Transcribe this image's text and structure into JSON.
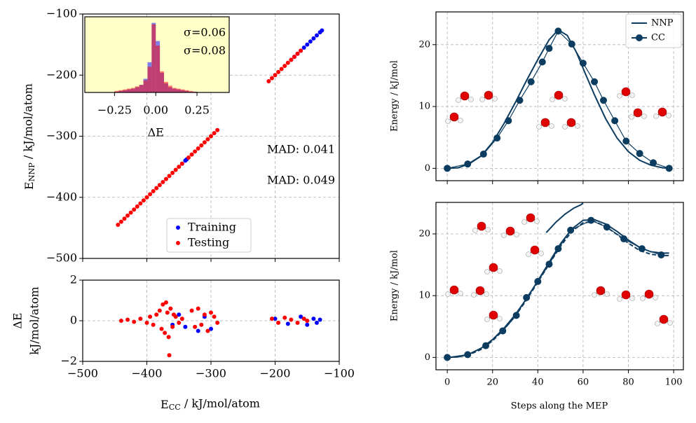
{
  "chart_data": [
    {
      "type": "scatter",
      "ylabel": {
        "main": "E",
        "sub": "NNP",
        "unit": " / kJ/mol/atom"
      },
      "xlim": [
        -500,
        -100
      ],
      "xticks": [
        -500,
        -400,
        -300,
        -200,
        -100
      ],
      "xtick_labels": false,
      "ylim": [
        -500,
        -100
      ],
      "yticks": [
        {
          "value": -500,
          "label": "−500"
        },
        {
          "value": -400,
          "label": "−400"
        },
        {
          "value": -300,
          "label": "−300"
        },
        {
          "value": -200,
          "label": "−200"
        },
        {
          "value": -100,
          "label": "−100"
        }
      ],
      "grid": true,
      "legend": "lower center",
      "series": [
        {
          "name": "Training",
          "color": "#0000ff",
          "x": [
            -345,
            -340,
            -338,
            -175,
            -170,
            -165,
            -160,
            -155,
            -150,
            -145,
            -140,
            -135,
            -130,
            -127
          ],
          "values": [
            -345,
            -340,
            -338,
            -175,
            -170,
            -165,
            -160,
            -155,
            -150,
            -145,
            -140,
            -135,
            -130,
            -127
          ]
        },
        {
          "name": "Testing",
          "color": "#ff0000",
          "x": [
            -445,
            -440,
            -435,
            -430,
            -425,
            -420,
            -415,
            -410,
            -405,
            -400,
            -395,
            -390,
            -385,
            -380,
            -375,
            -370,
            -365,
            -360,
            -355,
            -350,
            -345,
            -335,
            -330,
            -325,
            -320,
            -315,
            -310,
            -305,
            -300,
            -295,
            -290,
            -210,
            -205,
            -200,
            -195,
            -190,
            -185,
            -180,
            -175,
            -170,
            -165,
            -160
          ],
          "values": [
            -445,
            -440,
            -435,
            -430,
            -425,
            -420,
            -415,
            -410,
            -405,
            -400,
            -395,
            -390,
            -385,
            -380,
            -375,
            -370,
            -365,
            -360,
            -355,
            -350,
            -345,
            -335,
            -330,
            -325,
            -320,
            -315,
            -310,
            -305,
            -300,
            -295,
            -290,
            -210,
            -205,
            -200,
            -195,
            -190,
            -185,
            -180,
            -175,
            -170,
            -165,
            -160
          ]
        }
      ],
      "annotations": [
        {
          "text": "MAD: 0.041",
          "color": "#0000ff"
        },
        {
          "text": "MAD: 0.049",
          "color": "#ff0000"
        }
      ],
      "inset": {
        "type": "histogram",
        "xlabel": "ΔE",
        "background": "#ffffc8",
        "xlim": [
          -0.43,
          0.445
        ],
        "xticks": [
          {
            "value": -0.25,
            "label": "−0.25"
          },
          {
            "value": 0,
            "label": "0.00"
          },
          {
            "value": 0.25,
            "label": "0.25"
          }
        ],
        "ylim": [
          0,
          100
        ],
        "bins": [
          -0.25,
          -0.225,
          -0.2,
          -0.175,
          -0.15,
          -0.125,
          -0.1,
          -0.075,
          -0.05,
          -0.025,
          0,
          0.025,
          0.05,
          0.075,
          0.1,
          0.125,
          0.15,
          0.175,
          0.2,
          0.225,
          0.25
        ],
        "series": [
          {
            "color": "#0000ff",
            "values": [
              1,
              2,
              3,
              4,
              5,
              7,
              10,
              18,
              40,
              92,
              68,
              26,
              12,
              7,
              5,
              4,
              3,
              2,
              1,
              1
            ]
          },
          {
            "color": "#ff0000",
            "values": [
              2,
              3,
              4,
              5,
              6,
              8,
              10,
              16,
              34,
              90,
              62,
              28,
              14,
              9,
              6,
              5,
              4,
              3,
              2,
              1
            ]
          }
        ],
        "annotations": [
          {
            "text": "σ=0.06",
            "color": "#0000ff"
          },
          {
            "text": "σ=0.08",
            "color": "#ff0000"
          }
        ]
      }
    },
    {
      "type": "scatter",
      "ylabel": [
        "ΔE",
        "kJ/mol/atom"
      ],
      "xlabel": {
        "main": "E",
        "sub": "CC",
        "unit": " / kJ/mol/atom"
      },
      "xlim": [
        -500,
        -100
      ],
      "xticks": [
        {
          "value": -500,
          "label": "−500"
        },
        {
          "value": -400,
          "label": "−400"
        },
        {
          "value": -300,
          "label": "−300"
        },
        {
          "value": -200,
          "label": "−200"
        },
        {
          "value": -100,
          "label": "−100"
        }
      ],
      "ylim": [
        -2,
        2
      ],
      "yticks": [
        {
          "value": -2,
          "label": "−2"
        },
        0,
        2
      ],
      "grid": true,
      "series": [
        {
          "name": "Training",
          "color": "#0000ff",
          "x": [
            -360,
            -350,
            -340,
            -320,
            -310,
            -300,
            -200,
            -180,
            -160,
            -150,
            -140,
            -135,
            -130
          ],
          "values": [
            -0.2,
            0.3,
            -0.3,
            -0.5,
            0.2,
            -0.4,
            0.1,
            -0.15,
            0.2,
            -0.2,
            0.1,
            -0.1,
            0.05
          ]
        },
        {
          "name": "Testing",
          "color": "#ff0000",
          "x": [
            -440,
            -430,
            -420,
            -410,
            -400,
            -395,
            -390,
            -385,
            -380,
            -377,
            -375,
            -372,
            -370,
            -368,
            -366,
            -365,
            -363,
            -360,
            -358,
            -355,
            -350,
            -345,
            -330,
            -325,
            -320,
            -315,
            -310,
            -305,
            -300,
            -295,
            -290,
            -205,
            -195,
            -185,
            -175,
            -165,
            -155,
            -150
          ],
          "values": [
            0,
            0.05,
            -0.05,
            0.1,
            -0.1,
            0.2,
            -0.2,
            0.3,
            0.5,
            -0.4,
            0.8,
            -0.6,
            0.9,
            0.4,
            -0.8,
            -1.7,
            0.6,
            -0.3,
            0.3,
            0.2,
            -0.1,
            0.1,
            0.5,
            -0.3,
            0.6,
            -0.2,
            0.3,
            -0.5,
            0.4,
            0.2,
            -0.1,
            0.1,
            -0.1,
            0.15,
            0.05,
            -0.1,
            0.1,
            0
          ]
        }
      ]
    },
    {
      "type": "line",
      "ylabel": "Energy / kJ/mol",
      "xlim": [
        -5,
        104.3
      ],
      "xticks": [
        0,
        20,
        40,
        60,
        80,
        100
      ],
      "xtick_labels": false,
      "ylim": [
        -2,
        25.3
      ],
      "yticks": [
        0,
        10,
        20
      ],
      "grid": true,
      "legend": "upper right",
      "series": [
        {
          "name": "NNP",
          "color": "#0c3c60",
          "style": "solid",
          "x": [
            0,
            5,
            10,
            15,
            20,
            25,
            30,
            35,
            40,
            45,
            49,
            53,
            57,
            61,
            65,
            70,
            75,
            80,
            85,
            90,
            95,
            98
          ],
          "values": [
            0,
            0.1,
            0.8,
            2.0,
            4.2,
            7.2,
            10.6,
            14.2,
            17.6,
            20.8,
            22.4,
            21.5,
            18.8,
            15.3,
            11.9,
            8.0,
            4.9,
            2.7,
            1.3,
            0.5,
            0.1,
            0
          ]
        },
        {
          "name": "CC",
          "color": "#0c3c60",
          "style": "marker",
          "x": [
            0,
            9,
            16,
            22,
            27,
            32,
            37,
            42,
            45,
            49,
            55,
            60,
            65,
            69,
            74,
            79,
            85,
            91,
            98
          ],
          "values": [
            0,
            0.7,
            2.3,
            4.9,
            7.7,
            11,
            14,
            17.2,
            19.4,
            22.2,
            20.1,
            17,
            14,
            11,
            7.7,
            4.4,
            2.4,
            0.9,
            0
          ]
        }
      ]
    },
    {
      "type": "line",
      "ylabel": "Energy / kJ/mol",
      "xlabel": "Steps along the MEP",
      "xlim": [
        -5,
        104.3
      ],
      "xticks": [
        0,
        20,
        40,
        60,
        80,
        100
      ],
      "ylim": [
        -2,
        25.1
      ],
      "yticks": [
        0,
        10,
        20
      ],
      "grid": true,
      "series": [
        {
          "color": "#0c3c60",
          "style": "dashed",
          "x": [
            0,
            5,
            10,
            15,
            20,
            25,
            30,
            35,
            40,
            45,
            50,
            55,
            60,
            65,
            70,
            75,
            80,
            85,
            90,
            95,
            98
          ],
          "values": [
            0,
            0.1,
            0.5,
            1.3,
            2.7,
            4.5,
            6.7,
            9.3,
            12.2,
            15.1,
            18.0,
            20.4,
            21.8,
            22.0,
            21.2,
            19.9,
            18.5,
            17.3,
            16.7,
            16.5,
            16.5
          ]
        },
        {
          "color": "#0c3c60",
          "style": "solid",
          "x": [
            43.7,
            48,
            52,
            56,
            59,
            60
          ],
          "values": [
            20.2,
            21.9,
            23.2,
            24.2,
            24.7,
            25
          ]
        },
        {
          "name": "NNP",
          "color": "#0c3c60",
          "style": "solid",
          "x": [
            0,
            5,
            10,
            15,
            20,
            25,
            30,
            35,
            40,
            45,
            50,
            55,
            60,
            65,
            70,
            75,
            80,
            85,
            90,
            95,
            98
          ],
          "values": [
            0,
            0.1,
            0.6,
            1.5,
            2.9,
            4.7,
            6.9,
            9.5,
            12.4,
            15.4,
            18.4,
            20.8,
            22.2,
            22.3,
            21.6,
            20.4,
            19.0,
            17.8,
            17.1,
            16.9,
            16.9
          ]
        },
        {
          "name": "CC",
          "color": "#0c3c60",
          "style": "marker",
          "x": [
            0,
            9,
            17,
            24.5,
            30.5,
            35,
            40,
            45,
            49,
            54.5,
            63.5,
            70.5,
            78,
            86,
            94.5
          ],
          "values": [
            0,
            0.45,
            1.9,
            4.3,
            6.8,
            9.7,
            12.3,
            15.1,
            17.6,
            20.6,
            22.2,
            21.1,
            19.2,
            17.6,
            16.6
          ]
        }
      ]
    }
  ]
}
